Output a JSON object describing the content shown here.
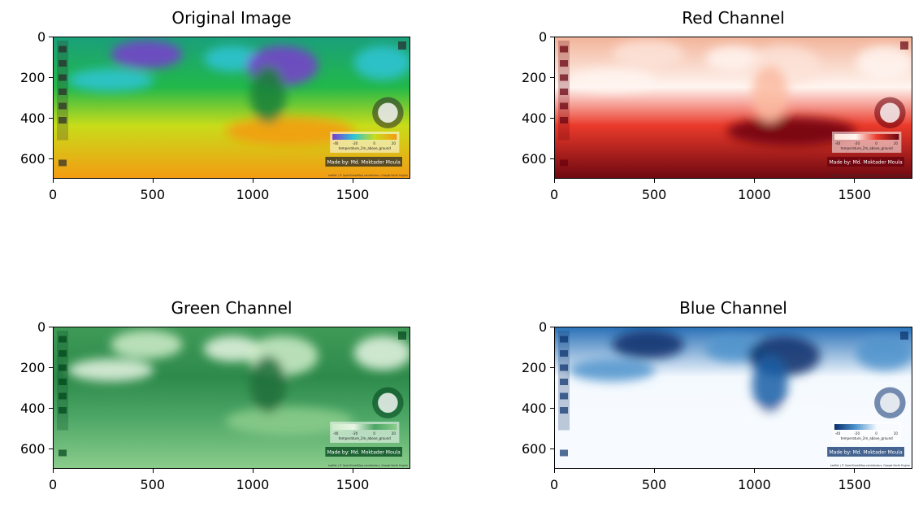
{
  "chart_data": [
    {
      "type": "image",
      "title": "Original Image",
      "xticks": [
        0,
        500,
        1000,
        1500
      ],
      "yticks": [
        0,
        200,
        400,
        600
      ],
      "xlim": [
        0,
        1788
      ],
      "ylim": [
        700,
        0
      ],
      "colormap": "rgb",
      "legend_ticks": [
        "-40",
        "-20",
        "0",
        "20"
      ],
      "legend_label": "temperature_2m_above_ground",
      "credit": "Made by: Md. Moktader Moula",
      "attribution": "Leaflet | © OpenStreetMap contributors, Google Earth Engine"
    },
    {
      "type": "image",
      "title": "Red Channel",
      "xticks": [
        0,
        500,
        1000,
        1500
      ],
      "yticks": [
        0,
        200,
        400,
        600
      ],
      "xlim": [
        0,
        1788
      ],
      "ylim": [
        700,
        0
      ],
      "colormap": "Reds",
      "legend_ticks": [
        "-40",
        "-20",
        "0",
        "20"
      ],
      "legend_label": "temperature_2m_above_ground",
      "credit": "Made by: Md. Moktader Moula",
      "attribution": "Leaflet | © OpenStreetMap contributors, Google Earth Engine"
    },
    {
      "type": "image",
      "title": "Green Channel",
      "xticks": [
        0,
        500,
        1000,
        1500
      ],
      "yticks": [
        0,
        200,
        400,
        600
      ],
      "xlim": [
        0,
        1788
      ],
      "ylim": [
        700,
        0
      ],
      "colormap": "Greens",
      "legend_ticks": [
        "-40",
        "-20",
        "0",
        "20"
      ],
      "legend_label": "temperature_2m_above_ground",
      "credit": "Made by: Md. Moktader Moula",
      "attribution": "Leaflet | © OpenStreetMap contributors, Google Earth Engine"
    },
    {
      "type": "image",
      "title": "Blue Channel",
      "xticks": [
        0,
        500,
        1000,
        1500
      ],
      "yticks": [
        0,
        200,
        400,
        600
      ],
      "xlim": [
        0,
        1788
      ],
      "ylim": [
        700,
        0
      ],
      "colormap": "Blues",
      "legend_ticks": [
        "-40",
        "-20",
        "0",
        "20"
      ],
      "legend_label": "temperature_2m_above_ground",
      "credit": "Made by: Md. Moktader Moula",
      "attribution": "Leaflet | © OpenStreetMap contributors, Google Earth Engine"
    }
  ]
}
